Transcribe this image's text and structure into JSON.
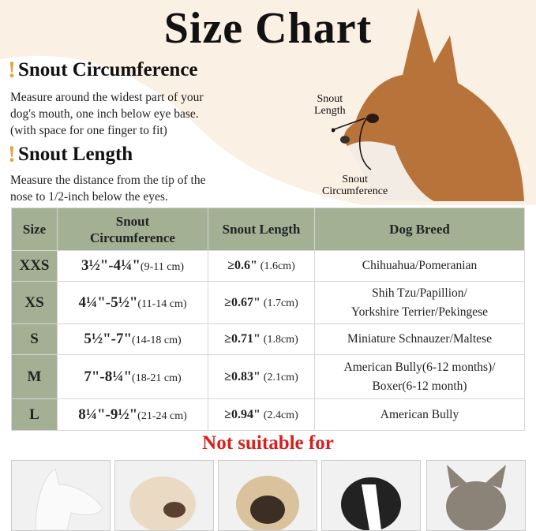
{
  "title": "Size Chart",
  "sections": [
    {
      "heading": "Snout Circumference",
      "lines": [
        "Measure around the widest part of your",
        "dog's mouth, one inch below eye base.",
        "(with space for one finger to fit)"
      ]
    },
    {
      "heading": "Snout Length",
      "lines": [
        "Measure the distance from the tip of the",
        "nose to 1/2-inch below the eyes."
      ]
    }
  ],
  "image_labels": {
    "length": [
      "Snout",
      "Length"
    ],
    "circumference": [
      "Snout",
      "Circumference"
    ]
  },
  "table": {
    "headers": [
      "Size",
      "Snout Circumference",
      "Snout Length",
      "Dog Breed"
    ],
    "rows": [
      {
        "size": "XXS",
        "circ": "3½\"-4¼\"",
        "circ_cm": "(9-11 cm)",
        "len": "≥0.6\"",
        "len_cm": "(1.6cm)",
        "breed": [
          "Chihuahua/Pomeranian"
        ]
      },
      {
        "size": "XS",
        "circ": "4¼\"-5½\"",
        "circ_cm": "(11-14 cm)",
        "len": "≥0.67\"",
        "len_cm": "(1.7cm)",
        "breed": [
          "Shih Tzu/Papillion/",
          "Yorkshire Terrier/Pekingese"
        ]
      },
      {
        "size": "S",
        "circ": "5½\"-7\"",
        "circ_cm": "(14-18 cm)",
        "len": "≥0.71\"",
        "len_cm": "(1.8cm)",
        "breed": [
          "Miniature Schnauzer/Maltese"
        ]
      },
      {
        "size": "M",
        "circ": "7\"-8¼\"",
        "circ_cm": "(18-21 cm)",
        "len": "≥0.83\"",
        "len_cm": "(2.1cm)",
        "breed": [
          "American Bully(6-12 months)/",
          "Boxer(6-12 month)"
        ]
      },
      {
        "size": "L",
        "circ": "8¼\"-9½\"",
        "circ_cm": "(21-24 cm)",
        "len": "≥0.94\"",
        "len_cm": "(2.4cm)",
        "breed": [
          "American Bully"
        ]
      }
    ]
  },
  "not_suitable": "Not suitable for",
  "colors": {
    "header_bg": "#a3b094",
    "warning": "#d81f1f",
    "accent": "#e8a23a",
    "background": "#fbf0e4"
  }
}
